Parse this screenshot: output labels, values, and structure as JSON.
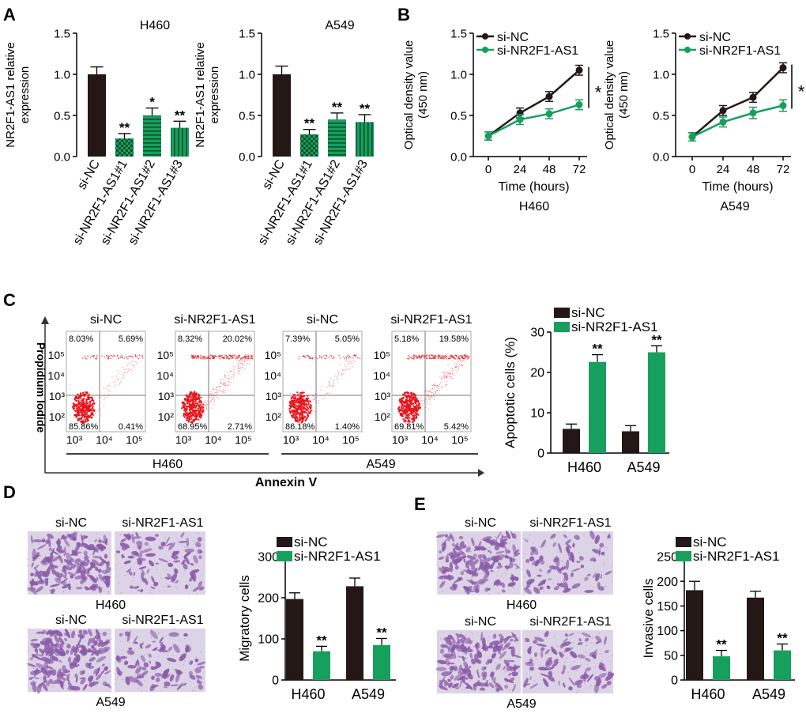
{
  "colors": {
    "dark": "#231815",
    "green": "#17a05d",
    "dot_red": "#e8141a",
    "gate": "#777777",
    "hatch_dark": "#0d4f2c",
    "stain": "#8a5aa8",
    "bg_stain": "#ddd3e6"
  },
  "panels": {
    "A": "A",
    "B": "B",
    "C": "C",
    "D": "D",
    "E": "E"
  },
  "legend": {
    "ctrl": "si-NC",
    "kd": "si-NR2F1-AS1"
  },
  "chart_data": [
    {
      "id": "A1",
      "type": "bar",
      "title": "H460",
      "ylabel_lines": [
        "NR2F1-AS1 relative",
        "expression"
      ],
      "categories": [
        "si-NC",
        "si-NR2F1-AS1#1",
        "si-NR2F1-AS1#2",
        "si-NR2F1-AS1#3"
      ],
      "values": [
        1.0,
        0.22,
        0.5,
        0.35
      ],
      "errors": [
        0.09,
        0.06,
        0.09,
        0.08
      ],
      "sig": [
        "",
        "**",
        "*",
        "**"
      ],
      "ylim": [
        0,
        1.5
      ],
      "yticks": [
        0,
        0.5,
        1.0,
        1.5
      ],
      "ytick_labels": [
        "0.0",
        "0.5",
        "1.0",
        "1.5"
      ]
    },
    {
      "id": "A2",
      "type": "bar",
      "title": "A549",
      "ylabel_lines": [
        "NR2F1-AS1 relative",
        "expression"
      ],
      "categories": [
        "si-NC",
        "si-NR2F1-AS1#1",
        "si-NR2F1-AS1#2",
        "si-NR2F1-AS1#3"
      ],
      "values": [
        1.0,
        0.27,
        0.45,
        0.42
      ],
      "errors": [
        0.1,
        0.06,
        0.08,
        0.09
      ],
      "sig": [
        "",
        "**",
        "**",
        "**"
      ],
      "ylim": [
        0,
        1.5
      ],
      "yticks": [
        0,
        0.5,
        1.0,
        1.5
      ],
      "ytick_labels": [
        "0.0",
        "0.5",
        "1.0",
        "1.5"
      ]
    },
    {
      "id": "B1",
      "type": "line",
      "subtitle": "H460",
      "ylabel_lines": [
        "Optical density value",
        "(450 nm)"
      ],
      "xlabel": "Time (hours)",
      "x": [
        0,
        24,
        48,
        72
      ],
      "series": [
        {
          "name": "si-NC",
          "values": [
            0.25,
            0.53,
            0.73,
            1.05
          ],
          "errors": [
            0.05,
            0.06,
            0.06,
            0.06
          ]
        },
        {
          "name": "si-NR2F1-AS1",
          "values": [
            0.25,
            0.45,
            0.52,
            0.63
          ],
          "errors": [
            0.05,
            0.06,
            0.06,
            0.06
          ]
        }
      ],
      "sig": "*",
      "ylim": [
        0,
        1.5
      ],
      "yticks": [
        0,
        0.5,
        1.0,
        1.5
      ],
      "ytick_labels": [
        "0.0",
        "0.5",
        "1.0",
        "1.5"
      ],
      "xtick_labels": [
        "0",
        "24",
        "48",
        "72"
      ]
    },
    {
      "id": "B2",
      "type": "line",
      "subtitle": "A549",
      "ylabel_lines": [
        "Optical density value",
        "(450 nm)"
      ],
      "xlabel": "Time (hours)",
      "x": [
        0,
        24,
        48,
        72
      ],
      "series": [
        {
          "name": "si-NC",
          "values": [
            0.24,
            0.56,
            0.72,
            1.08
          ],
          "errors": [
            0.05,
            0.06,
            0.06,
            0.06
          ]
        },
        {
          "name": "si-NR2F1-AS1",
          "values": [
            0.24,
            0.42,
            0.53,
            0.62
          ],
          "errors": [
            0.05,
            0.06,
            0.07,
            0.07
          ]
        }
      ],
      "sig": "*",
      "ylim": [
        0,
        1.5
      ],
      "yticks": [
        0,
        0.5,
        1.0,
        1.5
      ],
      "ytick_labels": [
        "0.0",
        "0.5",
        "1.0",
        "1.5"
      ],
      "xtick_labels": [
        "0",
        "24",
        "48",
        "72"
      ]
    },
    {
      "id": "C",
      "type": "bar",
      "ylabel": "Apoptotic cells (%)",
      "categories": [
        "H460",
        "A549"
      ],
      "series": [
        {
          "name": "si-NC",
          "values": [
            6.0,
            5.4
          ],
          "errors": [
            1.2,
            1.4
          ]
        },
        {
          "name": "si-NR2F1-AS1",
          "values": [
            22.6,
            25.0
          ],
          "errors": [
            1.8,
            1.6
          ]
        }
      ],
      "sig": [
        "**",
        "**"
      ],
      "ylim": [
        0,
        30
      ],
      "yticks": [
        0,
        10,
        20,
        30
      ],
      "ytick_labels": [
        "0",
        "10",
        "20",
        "30"
      ]
    },
    {
      "id": "D",
      "type": "bar",
      "ylabel": "Migratory cells",
      "categories": [
        "H460",
        "A549"
      ],
      "series": [
        {
          "name": "si-NC",
          "values": [
            197,
            228
          ],
          "errors": [
            15,
            20
          ]
        },
        {
          "name": "si-NR2F1-AS1",
          "values": [
            70,
            85
          ],
          "errors": [
            12,
            16
          ]
        }
      ],
      "sig": [
        "**",
        "**"
      ],
      "ylim": [
        0,
        300
      ],
      "yticks": [
        0,
        100,
        200,
        300
      ],
      "ytick_labels": [
        "0",
        "100",
        "200",
        "300"
      ]
    },
    {
      "id": "E",
      "type": "bar",
      "ylabel": "Invasive cells",
      "categories": [
        "H460",
        "A549"
      ],
      "series": [
        {
          "name": "si-NC",
          "values": [
            182,
            167
          ],
          "errors": [
            18,
            13
          ]
        },
        {
          "name": "si-NR2F1-AS1",
          "values": [
            48,
            60
          ],
          "errors": [
            12,
            13
          ]
        }
      ],
      "sig": [
        "**",
        "**"
      ],
      "ylim": [
        0,
        250
      ],
      "yticks": [
        0,
        50,
        100,
        150,
        200,
        250
      ],
      "ytick_labels": [
        "0",
        "50",
        "100",
        "150",
        "200",
        "250"
      ]
    }
  ],
  "flow": {
    "xlabel": "Annexin V",
    "ylabel": "Propidium Iodide",
    "axis_ticks": [
      "10³",
      "10⁴",
      "10⁵"
    ],
    "y_ticks": [
      "10⁵",
      "10⁴",
      "10³",
      "10²"
    ],
    "x_ticks": [
      "10³",
      "10⁴",
      "10⁵"
    ],
    "groups": [
      "H460",
      "A549"
    ],
    "plots": [
      {
        "title": "si-NC",
        "ul": "8.03%",
        "ur": "5.69%",
        "ll": "85.86%",
        "lr": "0.41%"
      },
      {
        "title": "si-NR2F1-AS1",
        "ul": "8.32%",
        "ur": "20.02%",
        "ll": "68.95%",
        "lr": "2.71%"
      },
      {
        "title": "si-NC",
        "ul": "7.39%",
        "ur": "5.05%",
        "ll": "86.18%",
        "lr": "1.40%"
      },
      {
        "title": "si-NR2F1-AS1",
        "ul": "5.18%",
        "ur": "19.58%",
        "ll": "69.81%",
        "lr": "5.42%"
      }
    ]
  },
  "transwell": {
    "D": {
      "rows": [
        {
          "ctrl": "si-NC",
          "kd": "si-NR2F1-AS1",
          "label": "H460"
        },
        {
          "ctrl": "si-NC",
          "kd": "si-NR2F1-AS1",
          "label": "A549"
        }
      ]
    },
    "E": {
      "rows": [
        {
          "ctrl": "si-NC",
          "kd": "si-NR2F1-AS1",
          "label": "H460"
        },
        {
          "ctrl": "si-NC",
          "kd": "si-NR2F1-AS1",
          "label": "A549"
        }
      ]
    }
  }
}
